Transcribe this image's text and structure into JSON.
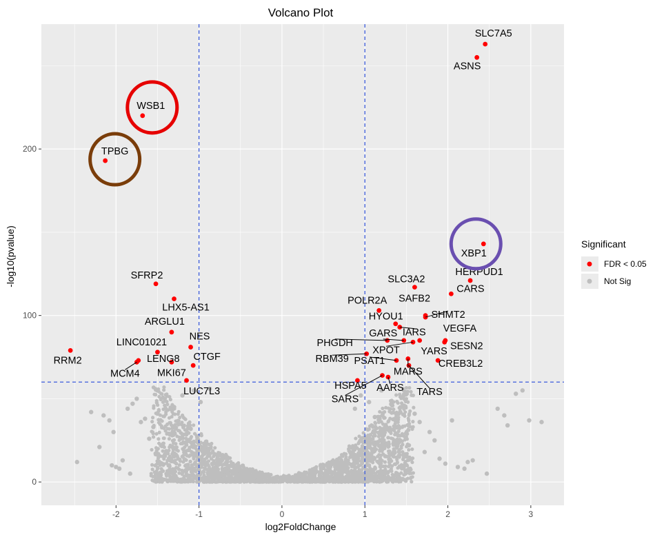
{
  "chart_data": {
    "type": "scatter",
    "title": "Volcano Plot",
    "xlabel": "log2FoldChange",
    "ylabel": "-log10(pvalue)",
    "xlim": [
      -2.9,
      3.4
    ],
    "ylim": [
      -14,
      275
    ],
    "x_ticks": [
      -2,
      -1,
      0,
      1,
      2,
      3
    ],
    "y_ticks": [
      0,
      100,
      200
    ],
    "grid": true,
    "threshold_lines": {
      "x": [
        -1,
        1
      ],
      "y": 60
    },
    "legend": {
      "title": "Significant",
      "position": "right",
      "entries": [
        {
          "label": "FDR < 0.05",
          "color": "#ff0000"
        },
        {
          "label": "Not Sig",
          "color": "#bebebe"
        }
      ]
    },
    "colors": {
      "significant": "#ff0000",
      "not_significant": "#bebebe",
      "threshold_line": "#3b5bdb",
      "panel": "#ebebeb",
      "grid": "#ffffff"
    },
    "highlight_circles": [
      {
        "gene": "WSB1",
        "color": "#e60000"
      },
      {
        "gene": "TPBG",
        "color": "#7a3d0a"
      },
      {
        "gene": "XBP1",
        "color": "#6a4fb0"
      }
    ],
    "series": [
      {
        "name": "FDR < 0.05",
        "points": [
          {
            "label": "SLC7A5",
            "x": 2.45,
            "y": 263
          },
          {
            "label": "ASNS",
            "x": 2.35,
            "y": 255
          },
          {
            "label": "WSB1",
            "x": -1.68,
            "y": 220
          },
          {
            "label": "TPBG",
            "x": -2.13,
            "y": 193
          },
          {
            "label": "XBP1",
            "x": 2.43,
            "y": 143
          },
          {
            "label": "HERPUD1",
            "x": 2.27,
            "y": 121
          },
          {
            "label": "SFRP2",
            "x": -1.52,
            "y": 119
          },
          {
            "label": "SLC3A2",
            "x": 1.6,
            "y": 117
          },
          {
            "label": "CARS",
            "x": 2.04,
            "y": 113
          },
          {
            "label": "LHX5-AS1",
            "x": -1.3,
            "y": 110
          },
          {
            "label": "POLR2A",
            "x": 1.17,
            "y": 103
          },
          {
            "label": "SAFB2",
            "x": 1.73,
            "y": 100
          },
          {
            "label": "SHMT2",
            "x": 1.73,
            "y": 99
          },
          {
            "label": "HYOU1",
            "x": 1.37,
            "y": 95
          },
          {
            "label": "IARS",
            "x": 1.42,
            "y": 93
          },
          {
            "label": "ARGLU1",
            "x": -1.33,
            "y": 90
          },
          {
            "label": "VEGFA",
            "x": 1.97,
            "y": 85
          },
          {
            "label": "SESN2",
            "x": 1.96,
            "y": 84
          },
          {
            "label": "GARS",
            "x": 1.47,
            "y": 85
          },
          {
            "label": "YARS",
            "x": 1.66,
            "y": 85
          },
          {
            "label": "PHGDH",
            "x": 1.27,
            "y": 85
          },
          {
            "label": "XPOT",
            "x": 1.58,
            "y": 84
          },
          {
            "label": "NES",
            "x": -1.1,
            "y": 81
          },
          {
            "label": "RRM2",
            "x": -2.55,
            "y": 79
          },
          {
            "label": "LINC01021",
            "x": -1.5,
            "y": 78
          },
          {
            "label": "RBM39",
            "x": 1.02,
            "y": 77
          },
          {
            "label": "PSAT1",
            "x": 1.38,
            "y": 73
          },
          {
            "label": "MARS",
            "x": 1.52,
            "y": 74
          },
          {
            "label": "CREB3L2",
            "x": 1.88,
            "y": 73
          },
          {
            "label": "LENG8",
            "x": -1.73,
            "y": 73
          },
          {
            "label": "CTGF",
            "x": -1.07,
            "y": 70
          },
          {
            "label": "MCM4",
            "x": -1.75,
            "y": 72
          },
          {
            "label": "MKI67",
            "x": -1.33,
            "y": 72
          },
          {
            "label": "TARS",
            "x": 1.53,
            "y": 70
          },
          {
            "label": "AARS",
            "x": 1.28,
            "y": 63
          },
          {
            "label": "LUC7L3",
            "x": -1.15,
            "y": 61
          },
          {
            "label": "HSPA5",
            "x": 0.91,
            "y": 61
          },
          {
            "label": "SARS",
            "x": 1.21,
            "y": 64
          }
        ]
      },
      {
        "name": "Not Sig",
        "points": [
          {
            "x": -2.47,
            "y": 12
          },
          {
            "x": -2.3,
            "y": 42
          },
          {
            "x": -2.15,
            "y": 40
          },
          {
            "x": -2.08,
            "y": 37
          },
          {
            "x": -2.03,
            "y": 30
          },
          {
            "x": -2.0,
            "y": 9
          },
          {
            "x": -1.96,
            "y": 8
          },
          {
            "x": -2.05,
            "y": 10
          },
          {
            "x": -1.92,
            "y": 13
          },
          {
            "x": -1.86,
            "y": 44
          },
          {
            "x": -1.8,
            "y": 47
          },
          {
            "x": -1.75,
            "y": 50
          },
          {
            "x": -1.7,
            "y": 36
          },
          {
            "x": -1.65,
            "y": 38
          },
          {
            "x": -1.6,
            "y": 26
          },
          {
            "x": -1.55,
            "y": 33
          },
          {
            "x": -1.5,
            "y": 41
          },
          {
            "x": -1.44,
            "y": 22
          },
          {
            "x": -1.4,
            "y": 17
          },
          {
            "x": -1.36,
            "y": 29
          },
          {
            "x": -1.3,
            "y": 45
          },
          {
            "x": -1.25,
            "y": 35
          },
          {
            "x": -1.2,
            "y": 52
          },
          {
            "x": -1.15,
            "y": 24
          },
          {
            "x": -1.1,
            "y": 32
          },
          {
            "x": -1.06,
            "y": 55
          },
          {
            "x": -1.02,
            "y": 27
          },
          {
            "x": -0.98,
            "y": 48
          },
          {
            "x": -0.92,
            "y": 19
          },
          {
            "x": -0.87,
            "y": 56
          },
          {
            "x": -2.2,
            "y": 21
          },
          {
            "x": -1.83,
            "y": 5
          },
          {
            "x": 0.88,
            "y": 44
          },
          {
            "x": 0.95,
            "y": 52
          },
          {
            "x": 1.05,
            "y": 48
          },
          {
            "x": 1.12,
            "y": 39
          },
          {
            "x": 1.2,
            "y": 55
          },
          {
            "x": 1.26,
            "y": 33
          },
          {
            "x": 1.33,
            "y": 46
          },
          {
            "x": 1.4,
            "y": 28
          },
          {
            "x": 1.46,
            "y": 51
          },
          {
            "x": 1.53,
            "y": 22
          },
          {
            "x": 1.6,
            "y": 41
          },
          {
            "x": 1.66,
            "y": 36
          },
          {
            "x": 1.72,
            "y": 18
          },
          {
            "x": 1.78,
            "y": 30
          },
          {
            "x": 1.84,
            "y": 25
          },
          {
            "x": 1.9,
            "y": 14
          },
          {
            "x": 1.97,
            "y": 11
          },
          {
            "x": 2.05,
            "y": 37
          },
          {
            "x": 2.12,
            "y": 9
          },
          {
            "x": 2.2,
            "y": 8
          },
          {
            "x": 2.24,
            "y": 12
          },
          {
            "x": 2.3,
            "y": 13
          },
          {
            "x": 2.47,
            "y": 5
          },
          {
            "x": 2.6,
            "y": 44
          },
          {
            "x": 2.68,
            "y": 40
          },
          {
            "x": 2.82,
            "y": 53
          },
          {
            "x": 2.9,
            "y": 55
          },
          {
            "x": 2.98,
            "y": 37
          },
          {
            "x": 3.13,
            "y": 36
          },
          {
            "x": 2.72,
            "y": 34
          }
        ]
      }
    ]
  }
}
